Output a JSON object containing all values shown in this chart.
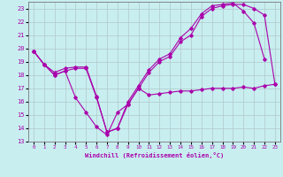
{
  "xlabel": "Windchill (Refroidissement éolien,°C)",
  "bg_color": "#c8eef0",
  "grid_color": "#b0c8c8",
  "line_color": "#aa00aa",
  "xlim": [
    -0.5,
    23.5
  ],
  "ylim": [
    13,
    23.5
  ],
  "yticks": [
    13,
    14,
    15,
    16,
    17,
    18,
    19,
    20,
    21,
    22,
    23
  ],
  "xticks": [
    0,
    1,
    2,
    3,
    4,
    5,
    6,
    7,
    8,
    9,
    10,
    11,
    12,
    13,
    14,
    15,
    16,
    17,
    18,
    19,
    20,
    21,
    22,
    23
  ],
  "line1_x": [
    0,
    1,
    2,
    3,
    4,
    5,
    6,
    7,
    8,
    9,
    10,
    11,
    12,
    13,
    14,
    15,
    16,
    17,
    18,
    19,
    20,
    21,
    22,
    23
  ],
  "line1_y": [
    19.8,
    18.8,
    18.0,
    18.3,
    16.3,
    15.2,
    14.1,
    13.5,
    15.2,
    15.8,
    17.0,
    16.5,
    16.6,
    16.7,
    16.8,
    16.8,
    16.9,
    17.0,
    17.0,
    17.0,
    17.1,
    17.0,
    17.2,
    17.3
  ],
  "line2_x": [
    0,
    1,
    2,
    3,
    4,
    5,
    6,
    7,
    8,
    9,
    10,
    11,
    12,
    13,
    14,
    15,
    16,
    17,
    18,
    19,
    20,
    21,
    22
  ],
  "line2_y": [
    19.8,
    18.8,
    18.2,
    18.5,
    18.6,
    18.6,
    16.4,
    13.7,
    14.0,
    16.0,
    17.2,
    18.4,
    19.2,
    19.6,
    20.8,
    21.5,
    22.6,
    23.2,
    23.3,
    23.4,
    22.8,
    21.9,
    19.2
  ],
  "line3_x": [
    0,
    1,
    2,
    3,
    4,
    5,
    6,
    7,
    8,
    9,
    10,
    11,
    12,
    13,
    14,
    15,
    16,
    17,
    18,
    19,
    20,
    21,
    22,
    23
  ],
  "line3_y": [
    19.8,
    18.8,
    18.0,
    18.3,
    18.5,
    18.5,
    16.3,
    13.7,
    14.0,
    15.8,
    17.0,
    18.2,
    19.0,
    19.4,
    20.5,
    21.0,
    22.4,
    23.0,
    23.2,
    23.3,
    23.3,
    23.0,
    22.5,
    17.3
  ]
}
